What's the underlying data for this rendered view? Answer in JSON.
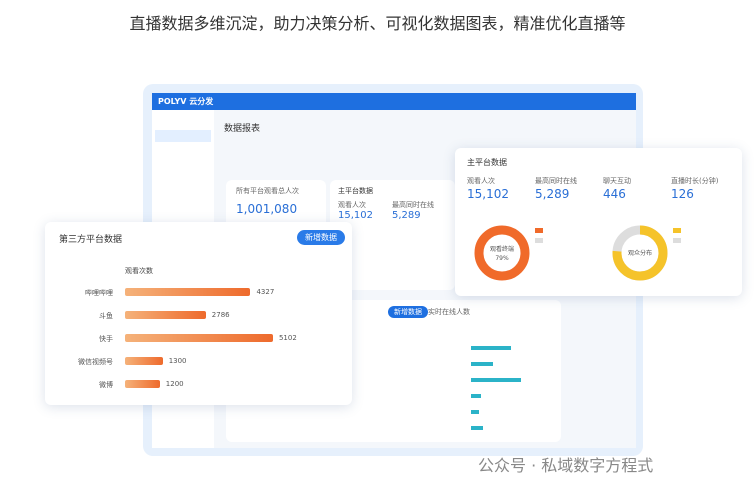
{
  "header": {
    "title": "直播数据多维沉淀，助力决策分析、可视化数据图表，精准优化直播等"
  },
  "app": {
    "logo": "POLYV 云分发",
    "page_title": "数据报表"
  },
  "total_card": {
    "label": "所有平台观看总人次",
    "value": "1,001,080"
  },
  "main_small": {
    "title": "主平台数据",
    "metrics": [
      {
        "label": "观看人次",
        "value": "15,102"
      },
      {
        "label": "最高同时在线",
        "value": "5,289"
      }
    ]
  },
  "main_platform": {
    "title": "主平台数据",
    "metrics": [
      {
        "label": "观看人次",
        "value": "15,102"
      },
      {
        "label": "最高同时在线",
        "value": "5,289"
      },
      {
        "label": "聊天互动",
        "value": "446"
      },
      {
        "label": "直播时长(分钟)",
        "value": "126"
      }
    ],
    "donut_left": {
      "center": "观看终端",
      "percent": "79%"
    },
    "donut_right": {
      "center": "观众分布"
    }
  },
  "bottom_tabs": [
    "新增数据",
    "实时在线人数"
  ],
  "third_party": {
    "title": "第三方平台数据",
    "button": "新增数据",
    "column": "观看次数",
    "rows": [
      {
        "name": "哔哩哔哩",
        "value": 4327
      },
      {
        "name": "斗鱼",
        "value": 2786
      },
      {
        "name": "快手",
        "value": 5102
      },
      {
        "name": "微信视频号",
        "value": 1300
      },
      {
        "name": "微博",
        "value": 1200
      }
    ]
  },
  "watermark": "公众号 · 私域数字方程式"
}
